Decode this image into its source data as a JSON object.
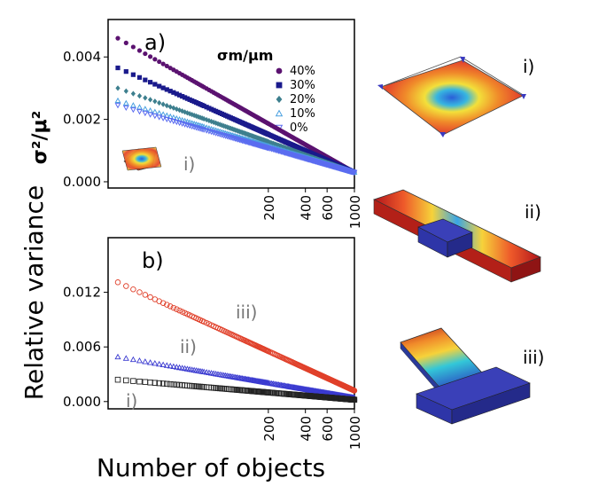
{
  "figure": {
    "y_label_top": "σ²/μ²",
    "y_label_main": "Relative variance",
    "x_label": "Number of objects"
  },
  "chart_data": [
    {
      "id": "a",
      "type": "scatter",
      "panel_label": "a)",
      "x_scale": "log",
      "xlim": [
        10,
        1000
      ],
      "ylim": [
        -0.0002,
        0.0052
      ],
      "x_ticks": [
        200,
        400,
        600,
        1000
      ],
      "x_tick_labels": [
        "200",
        "400",
        "600",
        "1000"
      ],
      "y_ticks": [
        0.0,
        0.002,
        0.004
      ],
      "y_tick_labels": [
        "0.000",
        "0.002",
        "0.004"
      ],
      "legend_title": "σm/μm",
      "legend_position": "top-right",
      "inset_label": "i)",
      "x_range": [
        12,
        1000
      ],
      "series": [
        {
          "name": "40%",
          "marker": "circle",
          "color": "#5b1270",
          "start": 0.0046,
          "end": 0.0003
        },
        {
          "name": "30%",
          "marker": "square",
          "color": "#1a1a8c",
          "start": 0.00365,
          "end": 0.0003
        },
        {
          "name": "20%",
          "marker": "diamond",
          "color": "#3d7f8e",
          "start": 0.003,
          "end": 0.0003
        },
        {
          "name": "10%",
          "marker": "triangle-up",
          "color": "#4aa0e0",
          "start": 0.0026,
          "end": 0.0003
        },
        {
          "name": "0%",
          "marker": "triangle-down",
          "color": "#5b6cf0",
          "start": 0.00245,
          "end": 0.0003
        }
      ]
    },
    {
      "id": "b",
      "type": "scatter",
      "panel_label": "b)",
      "x_scale": "log",
      "xlim": [
        10,
        1000
      ],
      "ylim": [
        -0.0008,
        0.018
      ],
      "x_ticks": [
        200,
        400,
        600,
        1000
      ],
      "x_tick_labels": [
        "200",
        "400",
        "600",
        "1000"
      ],
      "y_ticks": [
        0.0,
        0.006,
        0.012
      ],
      "y_tick_labels": [
        "0.000",
        "0.006",
        "0.012"
      ],
      "x_range": [
        12,
        1000
      ],
      "series": [
        {
          "name": "iii)",
          "marker": "open-circle",
          "color": "#e0402a",
          "start": 0.0131,
          "end": 0.0012
        },
        {
          "name": "ii)",
          "marker": "open-triangle",
          "color": "#3a3ad0",
          "start": 0.0049,
          "end": 0.0004
        },
        {
          "name": "i)",
          "marker": "open-square",
          "color": "#222222",
          "start": 0.0024,
          "end": 0.0002
        }
      ]
    }
  ],
  "side_labels": [
    "i)",
    "ii)",
    "iii)"
  ],
  "colors": {
    "heat_red": "#c4161c",
    "heat_yellow": "#f6d23a",
    "heat_blue": "#2b6ad8",
    "block_blue": "#2e35a8"
  }
}
